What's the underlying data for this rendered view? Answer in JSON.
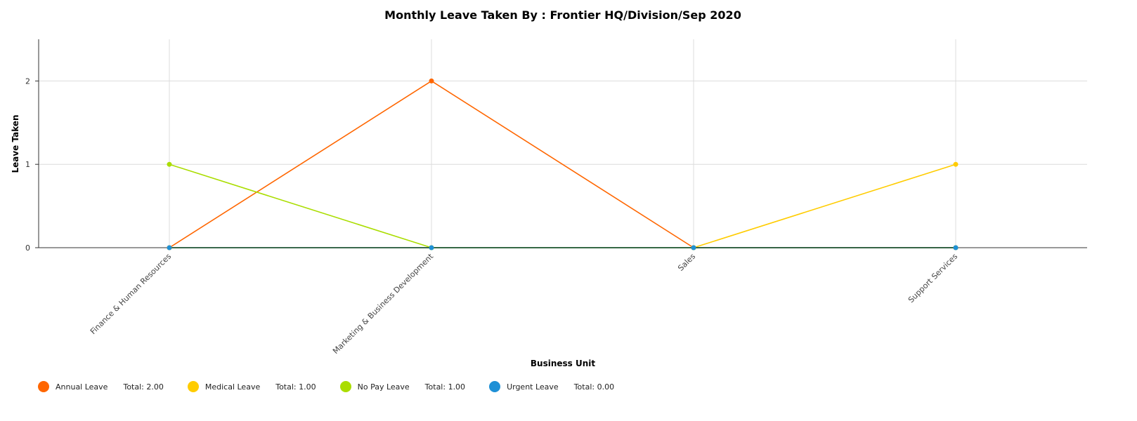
{
  "chart_data": {
    "type": "line",
    "title": "Monthly Leave Taken By : Frontier HQ/Division/Sep 2020",
    "xlabel": "Business Unit",
    "ylabel": "Leave Taken",
    "ylim": [
      0,
      2.5
    ],
    "yticks": [
      "0",
      "1",
      "2"
    ],
    "grid": true,
    "legend_position": "bottom-left",
    "categories": [
      "Finance & Human Resources",
      "Marketing & Business Development",
      "Sales",
      "Support Services"
    ],
    "series": [
      {
        "name": "Annual Leave",
        "color": "#ff6600",
        "values": [
          0,
          2,
          0,
          0
        ],
        "total": "Total: 2.00"
      },
      {
        "name": "Medical Leave",
        "color": "#ffcc00",
        "values": [
          0,
          0,
          0,
          1
        ],
        "total": "Total: 1.00"
      },
      {
        "name": "No Pay Leave",
        "color": "#aadd00",
        "values": [
          1,
          0,
          0,
          0
        ],
        "total": "Total: 1.00"
      },
      {
        "name": "Urgent Leave",
        "color": "#1e90d6",
        "values": [
          0,
          0,
          0,
          0
        ],
        "total": "Total: 0.00"
      }
    ]
  }
}
